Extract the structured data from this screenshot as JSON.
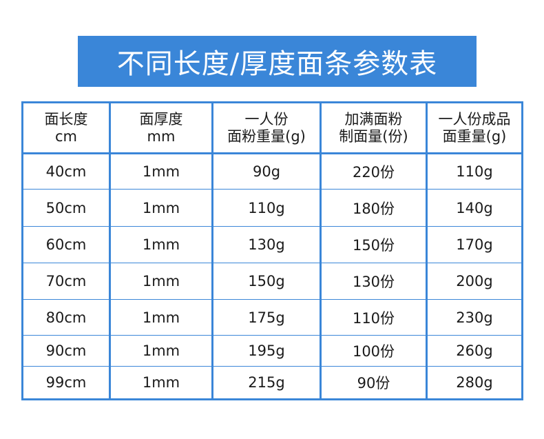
{
  "title": "不同长度/厚度面条参数表",
  "colors": {
    "accent": "#3a86d8",
    "text": "#1a1a1a"
  },
  "table": {
    "headers": [
      [
        "面长度",
        "cm"
      ],
      [
        "面厚度",
        "mm"
      ],
      [
        "一人份",
        "面粉重量(g)"
      ],
      [
        "加满面粉",
        "制面量(份)"
      ],
      [
        "一人份成品",
        "面重量(g)"
      ]
    ],
    "rows": [
      [
        "40cm",
        "1mm",
        "90g",
        "220份",
        "110g"
      ],
      [
        "50cm",
        "1mm",
        "110g",
        "180份",
        "140g"
      ],
      [
        "60cm",
        "1mm",
        "130g",
        "150份",
        "170g"
      ],
      [
        "70cm",
        "1mm",
        "150g",
        "130份",
        "200g"
      ],
      [
        "80cm",
        "1mm",
        "175g",
        "110份",
        "230g"
      ],
      [
        "90cm",
        "1mm",
        "195g",
        "100份",
        "260g"
      ],
      [
        "99cm",
        "1mm",
        "215g",
        "90份",
        "280g"
      ]
    ]
  }
}
